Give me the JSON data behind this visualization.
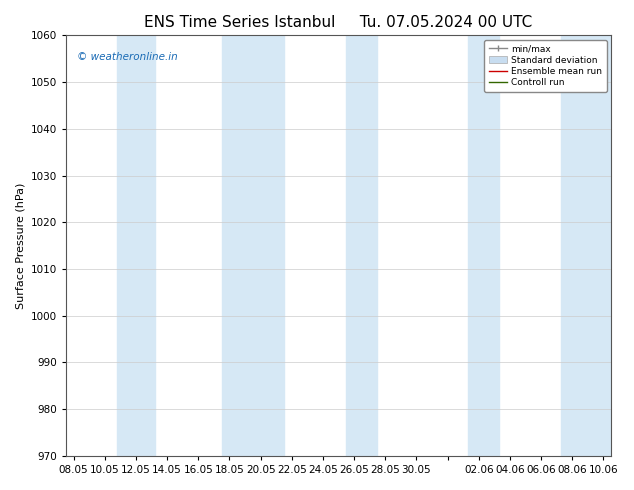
{
  "title_left": "ENS Time Series Istanbul",
  "title_right": "Tu. 07.05.2024 00 UTC",
  "ylabel": "Surface Pressure (hPa)",
  "ylim": [
    970,
    1060
  ],
  "yticks": [
    970,
    980,
    990,
    1000,
    1010,
    1020,
    1030,
    1040,
    1050,
    1060
  ],
  "x_labels": [
    "08.05",
    "10.05",
    "12.05",
    "14.05",
    "16.05",
    "18.05",
    "20.05",
    "22.05",
    "24.05",
    "26.05",
    "28.05",
    "30.05",
    "",
    "02.06",
    "04.06",
    "06.06",
    "08.06",
    "10.06"
  ],
  "x_positions": [
    0,
    2,
    4,
    6,
    8,
    10,
    12,
    14,
    16,
    18,
    20,
    22,
    24,
    26,
    28,
    30,
    32,
    34
  ],
  "xlim": [
    -0.5,
    34.5
  ],
  "band_color": "#d6e8f5",
  "background_color": "#ffffff",
  "watermark": "© weatheronline.in",
  "watermark_color": "#1a6bb5",
  "legend_labels": [
    "min/max",
    "Standard deviation",
    "Ensemble mean run",
    "Controll run"
  ],
  "legend_colors": [
    "#888888",
    "#c8ddf0",
    "#cc0000",
    "#336600"
  ],
  "title_fontsize": 11,
  "axis_fontsize": 8,
  "tick_fontsize": 7.5,
  "stripe_ranges": [
    [
      3.0,
      5.0
    ],
    [
      9.0,
      13.0
    ],
    [
      17.0,
      21.0
    ],
    [
      25.0,
      27.0
    ],
    [
      25.0,
      27.0
    ],
    [
      23.5,
      27.5
    ],
    [
      31.5,
      35.5
    ]
  ],
  "band_ranges": [
    [
      3.0,
      5.2
    ],
    [
      9.5,
      13.5
    ],
    [
      17.5,
      21.5
    ],
    [
      23.5,
      27.5
    ],
    [
      31.5,
      35.5
    ]
  ]
}
